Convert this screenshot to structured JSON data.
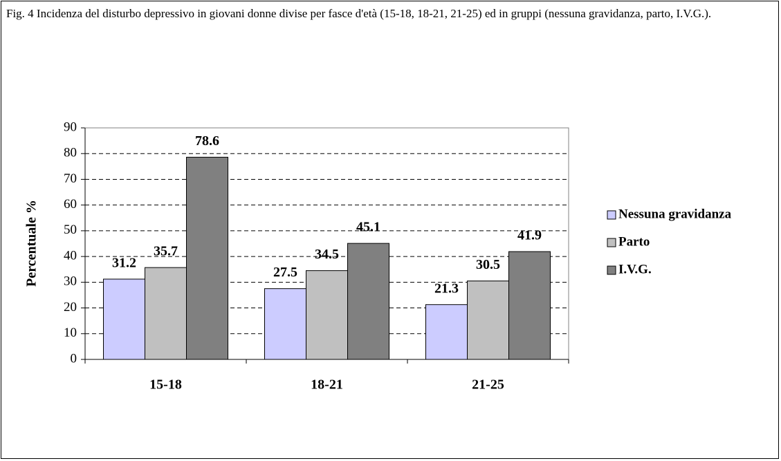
{
  "chart_data": {
    "type": "bar",
    "title": "Fig. 4 Incidenza del disturbo depressivo in giovani donne divise per fasce d'età (15-18, 18-21, 21-25) ed in gruppi (nessuna gravidanza, parto, I.V.G.).",
    "y_label": "Percentuale %",
    "categories": [
      "15-18",
      "18-21",
      "21-25"
    ],
    "series": [
      {
        "name": "Nessuna gravidanza",
        "color": "#ccccff",
        "values": [
          31.2,
          27.5,
          21.3
        ]
      },
      {
        "name": "Parto",
        "color": "#c0c0c0",
        "values": [
          35.7,
          34.5,
          30.5
        ]
      },
      {
        "name": "I.V.G.",
        "color": "#808080",
        "values": [
          78.6,
          45.1,
          41.9
        ]
      }
    ],
    "ylim": [
      0,
      90
    ],
    "yticks": [
      0,
      10,
      20,
      30,
      40,
      50,
      60,
      70,
      80,
      90
    ],
    "grid": true,
    "legend": "right"
  }
}
